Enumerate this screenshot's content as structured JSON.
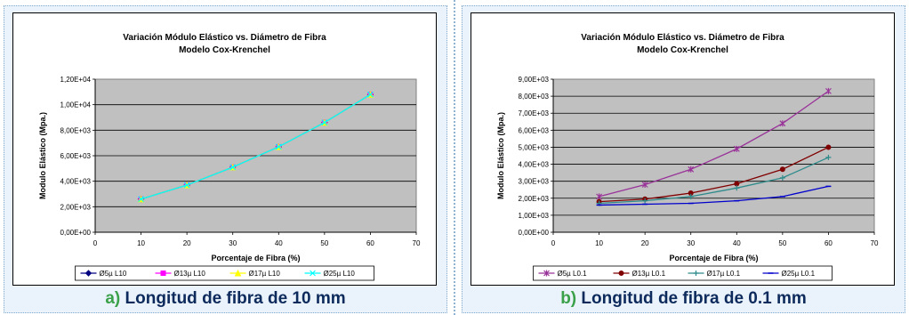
{
  "panels": [
    {
      "caption_letter": "a)",
      "caption_text": "Longitud de fibra de 10 mm",
      "chart_data": {
        "type": "line",
        "title": "Variación Módulo Elástico vs. Diámetro de Fibra",
        "subtitle": "Modelo Cox-Krenchel",
        "xlabel": "Porcentaje de Fibra (%)",
        "ylabel": "Modulo Elástico (Mpa.)",
        "xlim": [
          0,
          70
        ],
        "ylim": [
          0,
          12000
        ],
        "x_ticks": [
          0,
          10,
          20,
          30,
          40,
          50,
          60,
          70
        ],
        "y_ticks": [
          0,
          2000,
          4000,
          6000,
          8000,
          10000,
          12000
        ],
        "y_tick_labels": [
          "0,00E+00",
          "2,00E+03",
          "4,00E+03",
          "6,00E+03",
          "8,00E+03",
          "1,00E+04",
          "1,20E+04"
        ],
        "grid": true,
        "legend": "bottom",
        "plot_background": "#c0c0c0",
        "series": [
          {
            "name": "Ø5µ L10",
            "color": "#000080",
            "marker": "diamond",
            "x": [
              10,
              20,
              30,
              40,
              50,
              60
            ],
            "y": [
              2600,
              3700,
              5100,
              6700,
              8600,
              10800
            ]
          },
          {
            "name": "Ø13µ L10",
            "color": "#ff00ff",
            "marker": "square",
            "x": [
              10,
              20,
              30,
              40,
              50,
              60
            ],
            "y": [
              2600,
              3700,
              5100,
              6700,
              8600,
              10800
            ]
          },
          {
            "name": "Ø17µ L10",
            "color": "#ffff00",
            "marker": "triangle",
            "x": [
              10,
              20,
              30,
              40,
              50,
              60
            ],
            "y": [
              2600,
              3700,
              5100,
              6700,
              8600,
              10800
            ]
          },
          {
            "name": "Ø25µ L10",
            "color": "#00ffff",
            "marker": "x",
            "x": [
              10,
              20,
              30,
              40,
              50,
              60
            ],
            "y": [
              2600,
              3700,
              5100,
              6700,
              8600,
              10800
            ]
          }
        ]
      }
    },
    {
      "caption_letter": "b)",
      "caption_text": "Longitud de fibra de 0.1 mm",
      "chart_data": {
        "type": "line",
        "title": "Variación Módulo Elástico vs. Diámetro de Fibra",
        "subtitle": "Modelo Cox-Krenchel",
        "xlabel": "Porcentaje de Fibra (%)",
        "ylabel": "Modulo Elástico (Mpa.)",
        "xlim": [
          0,
          70
        ],
        "ylim": [
          0,
          9000
        ],
        "x_ticks": [
          0,
          10,
          20,
          30,
          40,
          50,
          60,
          70
        ],
        "y_ticks": [
          0,
          1000,
          2000,
          3000,
          4000,
          5000,
          6000,
          7000,
          8000,
          9000
        ],
        "y_tick_labels": [
          "0,00E+00",
          "1,00E+03",
          "2,00E+03",
          "3,00E+03",
          "4,00E+03",
          "5,00E+03",
          "6,00E+03",
          "7,00E+03",
          "8,00E+03",
          "9,00E+03"
        ],
        "grid": true,
        "legend": "bottom",
        "plot_background": "#c0c0c0",
        "series": [
          {
            "name": "Ø5µ L0.1",
            "color": "#993399",
            "marker": "star",
            "x": [
              10,
              20,
              30,
              40,
              50,
              60
            ],
            "y": [
              2100,
              2800,
              3700,
              4900,
              6400,
              8300
            ]
          },
          {
            "name": "Ø13µ L0.1",
            "color": "#800000",
            "marker": "circle",
            "x": [
              10,
              20,
              30,
              40,
              50,
              60
            ],
            "y": [
              1800,
              1950,
              2300,
              2850,
              3700,
              5000
            ]
          },
          {
            "name": "Ø17µ L0.1",
            "color": "#2e8b8b",
            "marker": "plus",
            "x": [
              10,
              20,
              30,
              40,
              50,
              60
            ],
            "y": [
              1700,
              1850,
              2100,
              2600,
              3200,
              4400
            ]
          },
          {
            "name": "Ø25µ L0.1",
            "color": "#0000cc",
            "marker": "dash",
            "x": [
              10,
              20,
              30,
              40,
              50,
              60
            ],
            "y": [
              1600,
              1650,
              1700,
              1850,
              2100,
              2700
            ]
          }
        ]
      }
    }
  ]
}
